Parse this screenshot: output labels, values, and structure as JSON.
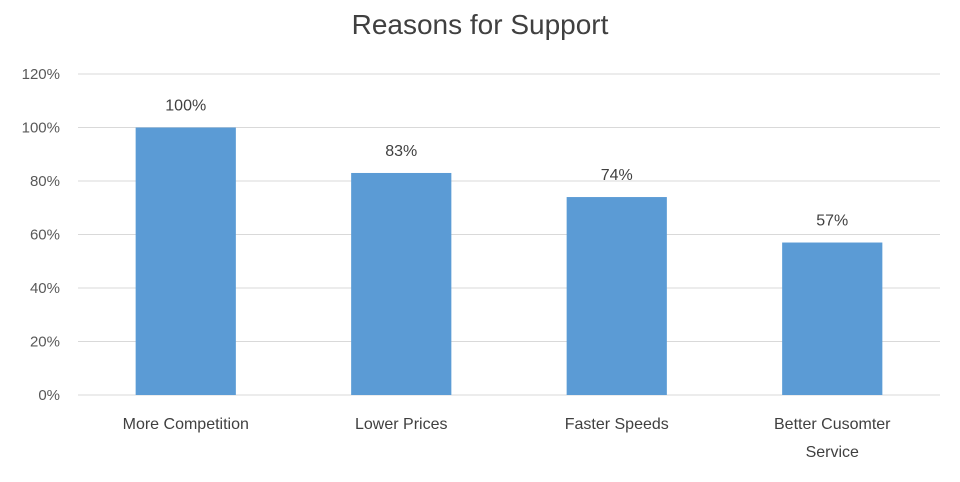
{
  "chart_data": {
    "type": "bar",
    "title": "Reasons for Support",
    "categories": [
      "More Competition",
      "Lower Prices",
      "Faster Speeds",
      "Better Cusomter Service"
    ],
    "category_lines": [
      [
        "More Competition"
      ],
      [
        "Lower Prices"
      ],
      [
        "Faster Speeds"
      ],
      [
        "Better Cusomter",
        "Service"
      ]
    ],
    "values": [
      100,
      83,
      74,
      57
    ],
    "data_labels": [
      "100%",
      "83%",
      "74%",
      "57%"
    ],
    "y_ticks": [
      "0%",
      "20%",
      "40%",
      "60%",
      "80%",
      "100%",
      "120%"
    ],
    "ylim": [
      0,
      120
    ],
    "ytick_step": 20,
    "grid": true,
    "legend": "none",
    "bar_color": "#5b9bd5"
  }
}
